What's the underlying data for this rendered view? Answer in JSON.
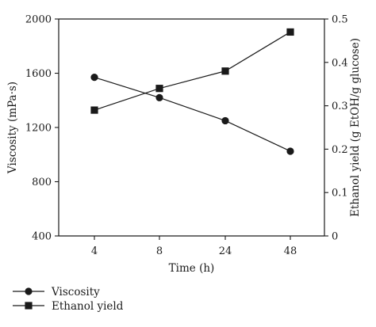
{
  "chart_data": {
    "type": "line",
    "categories": [
      "4",
      "8",
      "24",
      "48"
    ],
    "xlabel": "Time (h)",
    "ylabel_left": "Viscosity (mPa·s)",
    "ylabel_right": "Ethanol yield (g EtOH/g glucose)",
    "ylim_left": [
      400,
      2000
    ],
    "yticks_left": [
      400,
      800,
      1200,
      1600,
      2000
    ],
    "ylim_right": [
      0,
      0.5
    ],
    "yticks_right": [
      0,
      0.1,
      0.2,
      0.3,
      0.4,
      0.5
    ],
    "grid": false,
    "legend_placement": "bottom-left",
    "series": [
      {
        "name": "Viscosity",
        "axis": "left",
        "marker": "circle",
        "values": [
          1570,
          1420,
          1250,
          1025
        ]
      },
      {
        "name": "Ethanol yield",
        "axis": "right",
        "marker": "square",
        "values": [
          0.29,
          0.34,
          0.38,
          0.47
        ]
      }
    ]
  },
  "colors": {
    "line": "#1a1a1a",
    "background": "#ffffff"
  }
}
